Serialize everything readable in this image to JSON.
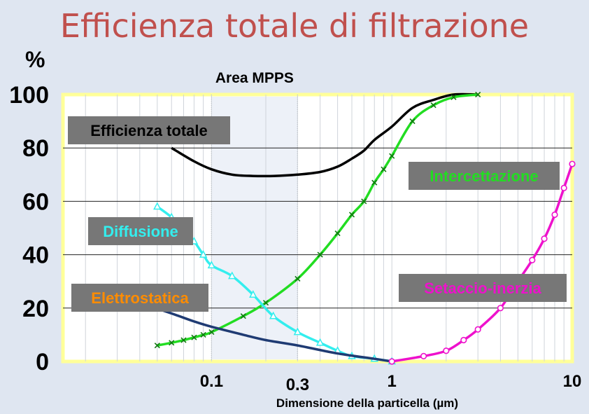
{
  "title": "Efficienza totale di filtrazione",
  "chart_data": {
    "type": "line",
    "xscale": "log",
    "xlim": [
      0.015,
      10
    ],
    "ylim": [
      0,
      100
    ],
    "ylabel": "%",
    "xlabel": "Dimensione della particella  (µm)",
    "y_ticks": [
      0,
      20,
      40,
      60,
      80,
      100
    ],
    "x_ticks": [
      {
        "value": 0.1,
        "label": "0.1"
      },
      {
        "value": 0.3,
        "label": "0.3"
      },
      {
        "value": 1,
        "label": "1"
      },
      {
        "value": 10,
        "label": "10"
      }
    ],
    "grid": true,
    "mpps_area": {
      "label": "Area MPPS",
      "x_range": [
        0.1,
        0.3
      ]
    },
    "series": [
      {
        "name": "Efficienza totale",
        "color": "#000000",
        "marker": "none",
        "x": [
          0.06,
          0.08,
          0.1,
          0.13,
          0.17,
          0.22,
          0.3,
          0.4,
          0.5,
          0.6,
          0.7,
          0.8,
          1.0,
          1.3,
          1.7,
          2.2,
          3.0
        ],
        "y": [
          80,
          75,
          72,
          70,
          69.5,
          69.5,
          70,
          71,
          73,
          76,
          79,
          83,
          88,
          95,
          98,
          100,
          100
        ]
      },
      {
        "name": "Intercettazione",
        "color": "#22dd22",
        "marker": "x",
        "x": [
          0.05,
          0.06,
          0.07,
          0.08,
          0.09,
          0.1,
          0.15,
          0.2,
          0.3,
          0.4,
          0.5,
          0.6,
          0.7,
          0.8,
          0.9,
          1.0,
          1.3,
          1.7,
          2.2,
          3.0
        ],
        "y": [
          6,
          7,
          8,
          9,
          10,
          11,
          17,
          22,
          31,
          40,
          48,
          55,
          60,
          67,
          72,
          77,
          90,
          96,
          99,
          100
        ]
      },
      {
        "name": "Diffusione",
        "color": "#33eeee",
        "marker": "triangle",
        "x": [
          0.05,
          0.06,
          0.07,
          0.08,
          0.09,
          0.1,
          0.13,
          0.17,
          0.22,
          0.3,
          0.4,
          0.5,
          0.6,
          0.8,
          1.0
        ],
        "y": [
          58,
          54,
          49,
          45,
          40,
          36,
          32,
          25,
          17,
          11,
          7,
          4,
          2,
          1,
          0
        ]
      },
      {
        "name": "Elettrostatica",
        "color": "#1f3b73",
        "marker": "none",
        "x": [
          0.04,
          0.06,
          0.08,
          0.1,
          0.15,
          0.2,
          0.3,
          0.5,
          0.8,
          1.0
        ],
        "y": [
          22,
          18,
          15,
          13,
          10,
          8,
          6,
          3,
          1,
          0
        ]
      },
      {
        "name": "Setaccio-inerzia",
        "color": "#ee11cc",
        "marker": "circle",
        "x": [
          1.0,
          1.5,
          2.0,
          2.5,
          3.0,
          4.0,
          5.0,
          6.0,
          7.0,
          8.0,
          9.0,
          10.0
        ],
        "y": [
          0,
          2,
          4,
          8,
          12,
          20,
          30,
          38,
          46,
          55,
          65,
          74
        ]
      }
    ],
    "labels": [
      {
        "text": "Efficienza totale",
        "color": "#000000"
      },
      {
        "text": "Intercettazione",
        "color": "#22dd22"
      },
      {
        "text": "Diffusione",
        "color": "#33eeee"
      },
      {
        "text": "Elettrostatica",
        "color": "#ff8c00"
      },
      {
        "text": "Setaccio-inerzia",
        "color": "#ee11cc"
      }
    ]
  }
}
